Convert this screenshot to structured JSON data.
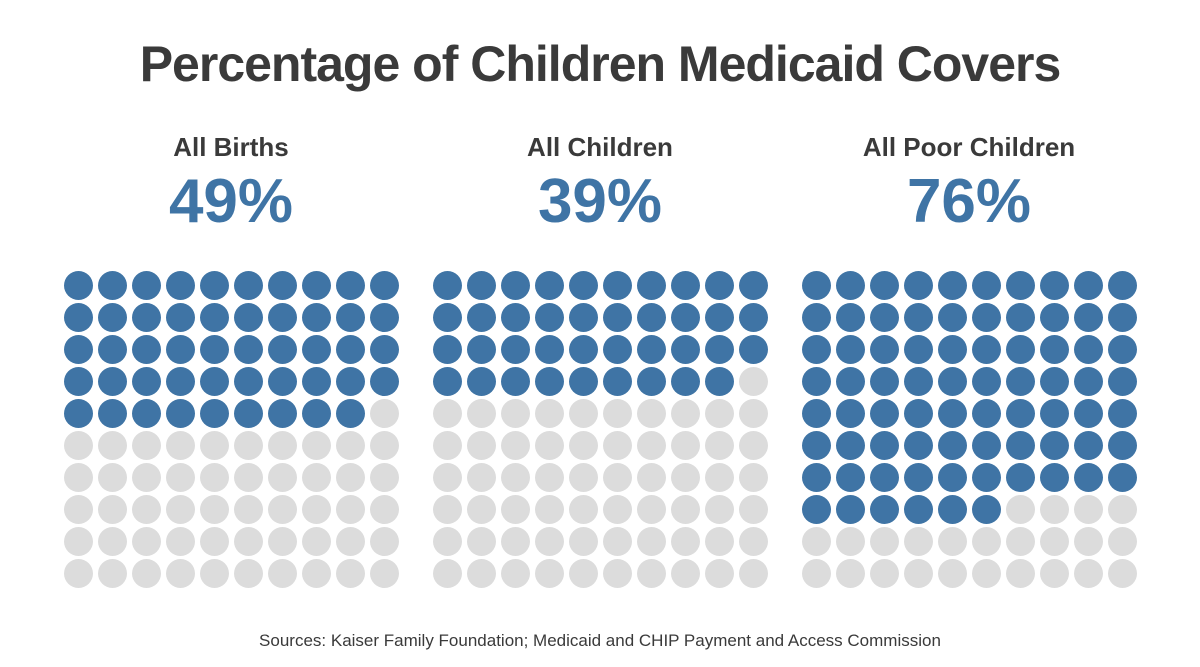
{
  "title": "Percentage of Children Medicaid Covers",
  "source_note": "Sources: Kaiser Family Foundation; Medicaid and CHIP Payment and Access Commission",
  "colors": {
    "filled_dot": "#3F74A5",
    "empty_dot": "#DCDCDC",
    "heading_text": "#3A3A3A",
    "percent_text": "#3F74A5",
    "background": "#FFFFFF"
  },
  "chart_data": {
    "type": "waffle",
    "title": "Percentage of Children Medicaid Covers",
    "categories": [
      "All Births",
      "All Children",
      "All Poor Children"
    ],
    "values": [
      49,
      39,
      76
    ],
    "unit": "percent",
    "grid": {
      "rows": 10,
      "cols": 10,
      "dot_total": 100
    },
    "fill_order": "row-major from top-left (rows fill left-to-right, top-to-bottom)",
    "legend": "off",
    "charts": [
      {
        "label": "All Births",
        "percent_label": "49%",
        "value": 49,
        "filled_dots": 49,
        "empty_dots": 51
      },
      {
        "label": "All Children",
        "percent_label": "39%",
        "value": 39,
        "filled_dots": 39,
        "empty_dots": 61
      },
      {
        "label": "All Poor Children",
        "percent_label": "76%",
        "value": 76,
        "filled_dots": 76,
        "empty_dots": 24
      }
    ],
    "source": "Sources: Kaiser Family Foundation; Medicaid and CHIP Payment and Access Commission"
  }
}
